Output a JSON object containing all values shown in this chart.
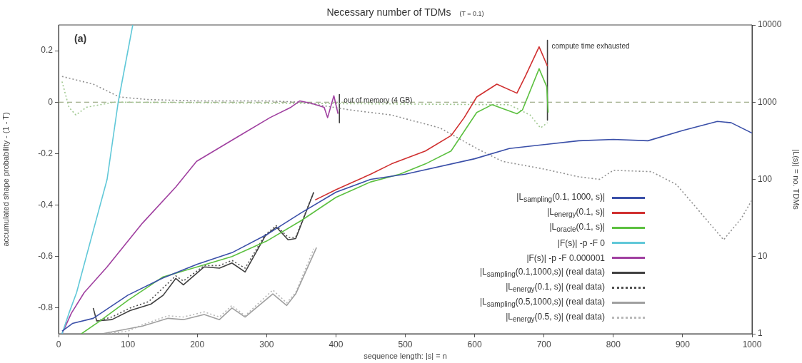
{
  "chart_data": {
    "type": "line",
    "title": "Necessary number of TDMs",
    "subtitle": "(T = 0.1)",
    "xlabel": "sequence length: |s| = n",
    "ylabel": "accumulated shape probability - (1 - T)",
    "y2label": "|L(s)| = no. TDMs",
    "annotations": [
      "(a)",
      {
        "text": "out of memory (4 GB)",
        "x": 405,
        "y": 0.03
      },
      {
        "text": "compute time exhausted",
        "x": 705,
        "y": 0.24
      }
    ],
    "xlim": [
      0,
      1000
    ],
    "xticks": [
      0,
      100,
      200,
      300,
      400,
      500,
      600,
      700,
      800,
      900,
      1000
    ],
    "ylim": [
      -0.9,
      0.3
    ],
    "yticks": [
      -0.8,
      -0.6,
      -0.4,
      -0.2,
      0,
      0.2
    ],
    "y2lim": [
      1,
      10000
    ],
    "y2ticks": [
      1,
      10,
      100,
      1000,
      10000
    ],
    "log": "y2",
    "grid": false,
    "legend": "bottom right",
    "marker": "none",
    "ref_lines": [
      {
        "axis": "y",
        "value": 0,
        "color": "#8a9a70",
        "line_style": "dashed"
      }
    ],
    "series": [
      {
        "name": "|L$_{sampling}$(0.1, 1000, s)|",
        "color": "#3a4fa8",
        "x": [
          5,
          20,
          50,
          100,
          150,
          200,
          250,
          300,
          350,
          400,
          450,
          500,
          600,
          650,
          700,
          750,
          800,
          850,
          900,
          950,
          970,
          1000
        ],
        "values": [
          -0.89,
          -0.86,
          -0.84,
          -0.75,
          -0.684,
          -0.63,
          -0.585,
          -0.515,
          -0.43,
          -0.35,
          -0.3,
          -0.28,
          -0.22,
          -0.18,
          -0.165,
          -0.15,
          -0.145,
          -0.15,
          -0.11,
          -0.075,
          -0.08,
          -0.12
        ]
      },
      {
        "name": "|L$_{energy}$(0.1, s)|",
        "color": "#d03030",
        "x": [
          370,
          400,
          450,
          480,
          529,
          566,
          585,
          603,
          632,
          661,
          673,
          693,
          705
        ],
        "values": [
          -0.38,
          -0.34,
          -0.28,
          -0.24,
          -0.19,
          -0.13,
          -0.06,
          0.02,
          0.07,
          0.035,
          0.1,
          0.215,
          0.14
        ]
      },
      {
        "name": "|L$_{oracle}$(0.1, s)|",
        "color": "#5cc040",
        "x": [
          33,
          60,
          100,
          150,
          200,
          250,
          300,
          350,
          400,
          450,
          492,
          529,
          566,
          603,
          625,
          661,
          669,
          693,
          704,
          706
        ],
        "values": [
          -0.9,
          -0.85,
          -0.77,
          -0.68,
          -0.64,
          -0.6,
          -0.54,
          -0.46,
          -0.37,
          -0.31,
          -0.28,
          -0.24,
          -0.19,
          -0.04,
          -0.01,
          -0.045,
          -0.03,
          0.13,
          0.06,
          -0.04
        ]
      },
      {
        "name": "|F(s)| -p -F 0",
        "color": "#60c8d8",
        "x": [
          5,
          15,
          26,
          50,
          70,
          86,
          107
        ],
        "values": [
          -0.9,
          -0.82,
          -0.74,
          -0.5,
          -0.3,
          0,
          0.3
        ]
      },
      {
        "name": "|F(s)| -p -F 0.000001",
        "color": "#a040a0",
        "x": [
          5,
          18.5,
          37,
          70,
          121,
          169,
          199,
          258,
          305,
          335,
          348,
          365,
          383,
          388,
          397,
          403
        ],
        "values": [
          -0.9,
          -0.82,
          -0.74,
          -0.64,
          -0.47,
          -0.33,
          -0.23,
          -0.135,
          -0.06,
          -0.02,
          0.005,
          -0.005,
          -0.02,
          -0.06,
          0.025,
          -0.045
        ]
      },
      {
        "name": "|L$_{sampling}$(0.1,1000,s)| (real data)",
        "color": "#404040",
        "x": [
          50,
          55,
          77,
          103,
          133,
          151,
          169,
          180,
          210,
          232,
          250,
          269,
          298,
          314,
          331,
          342,
          368
        ],
        "values": [
          -0.8,
          -0.85,
          -0.845,
          -0.81,
          -0.785,
          -0.75,
          -0.685,
          -0.71,
          -0.64,
          -0.645,
          -0.625,
          -0.66,
          -0.52,
          -0.485,
          -0.535,
          -0.53,
          -0.35
        ]
      },
      {
        "name": "|L$_{energy}$(0.1, s)| (real data)",
        "color": "#505050",
        "line_style": "dotted",
        "x": [
          55,
          77,
          103,
          130,
          169,
          180,
          210,
          232,
          250,
          269,
          298,
          314,
          331,
          342,
          368
        ],
        "values": [
          -0.85,
          -0.835,
          -0.8,
          -0.775,
          -0.675,
          -0.695,
          -0.635,
          -0.635,
          -0.615,
          -0.645,
          -0.515,
          -0.48,
          -0.525,
          -0.525,
          -0.35
        ]
      },
      {
        "name": "|L$_{sampling}$(0.5,1000,s)| (real data)",
        "color": "#a0a0a0",
        "x": [
          63,
          121,
          158,
          180,
          210,
          232,
          250,
          269,
          309,
          329,
          342,
          372
        ],
        "values": [
          -0.9,
          -0.87,
          -0.84,
          -0.845,
          -0.825,
          -0.845,
          -0.8,
          -0.835,
          -0.745,
          -0.79,
          -0.745,
          -0.565
        ]
      },
      {
        "name": "|L$_{energy}$(0.5, s)| (real data)",
        "color": "#b8b8b8",
        "line_style": "dotted",
        "x": [
          70,
          100,
          121,
          158,
          180,
          210,
          232,
          250,
          269,
          309,
          329,
          342,
          368
        ],
        "values": [
          -0.9,
          -0.89,
          -0.865,
          -0.83,
          -0.835,
          -0.815,
          -0.835,
          -0.79,
          -0.83,
          -0.73,
          -0.78,
          -0.74,
          -0.57
        ]
      },
      {
        "color": "#909090",
        "line_style": "dotted",
        "x": [
          5,
          50,
          88,
          130,
          200,
          300,
          350,
          420,
          480,
          550,
          603,
          640,
          700,
          750,
          780,
          800,
          855,
          891,
          926,
          959,
          985,
          1000
        ],
        "values": [
          0.1,
          0.07,
          0.02,
          0.01,
          0.005,
          0.005,
          0.0,
          -0.03,
          -0.05,
          -0.1,
          -0.18,
          -0.23,
          -0.26,
          -0.29,
          -0.3,
          -0.265,
          -0.27,
          -0.32,
          -0.43,
          -0.535,
          -0.45,
          -0.38
        ]
      },
      {
        "color": "#a0c890",
        "line_style": "dotted",
        "x": [
          5,
          15,
          25,
          40,
          80,
          650,
          680,
          695,
          705
        ],
        "values": [
          0.08,
          -0.02,
          -0.05,
          -0.02,
          0,
          -0.01,
          -0.05,
          -0.1,
          -0.08
        ]
      },
      {
        "color": "#404040",
        "x": [
          405,
          405
        ],
        "values": [
          0.03,
          -0.08
        ]
      },
      {
        "color": "#404040",
        "x": [
          705,
          705
        ],
        "values": [
          0.24,
          -0.07
        ]
      }
    ]
  }
}
